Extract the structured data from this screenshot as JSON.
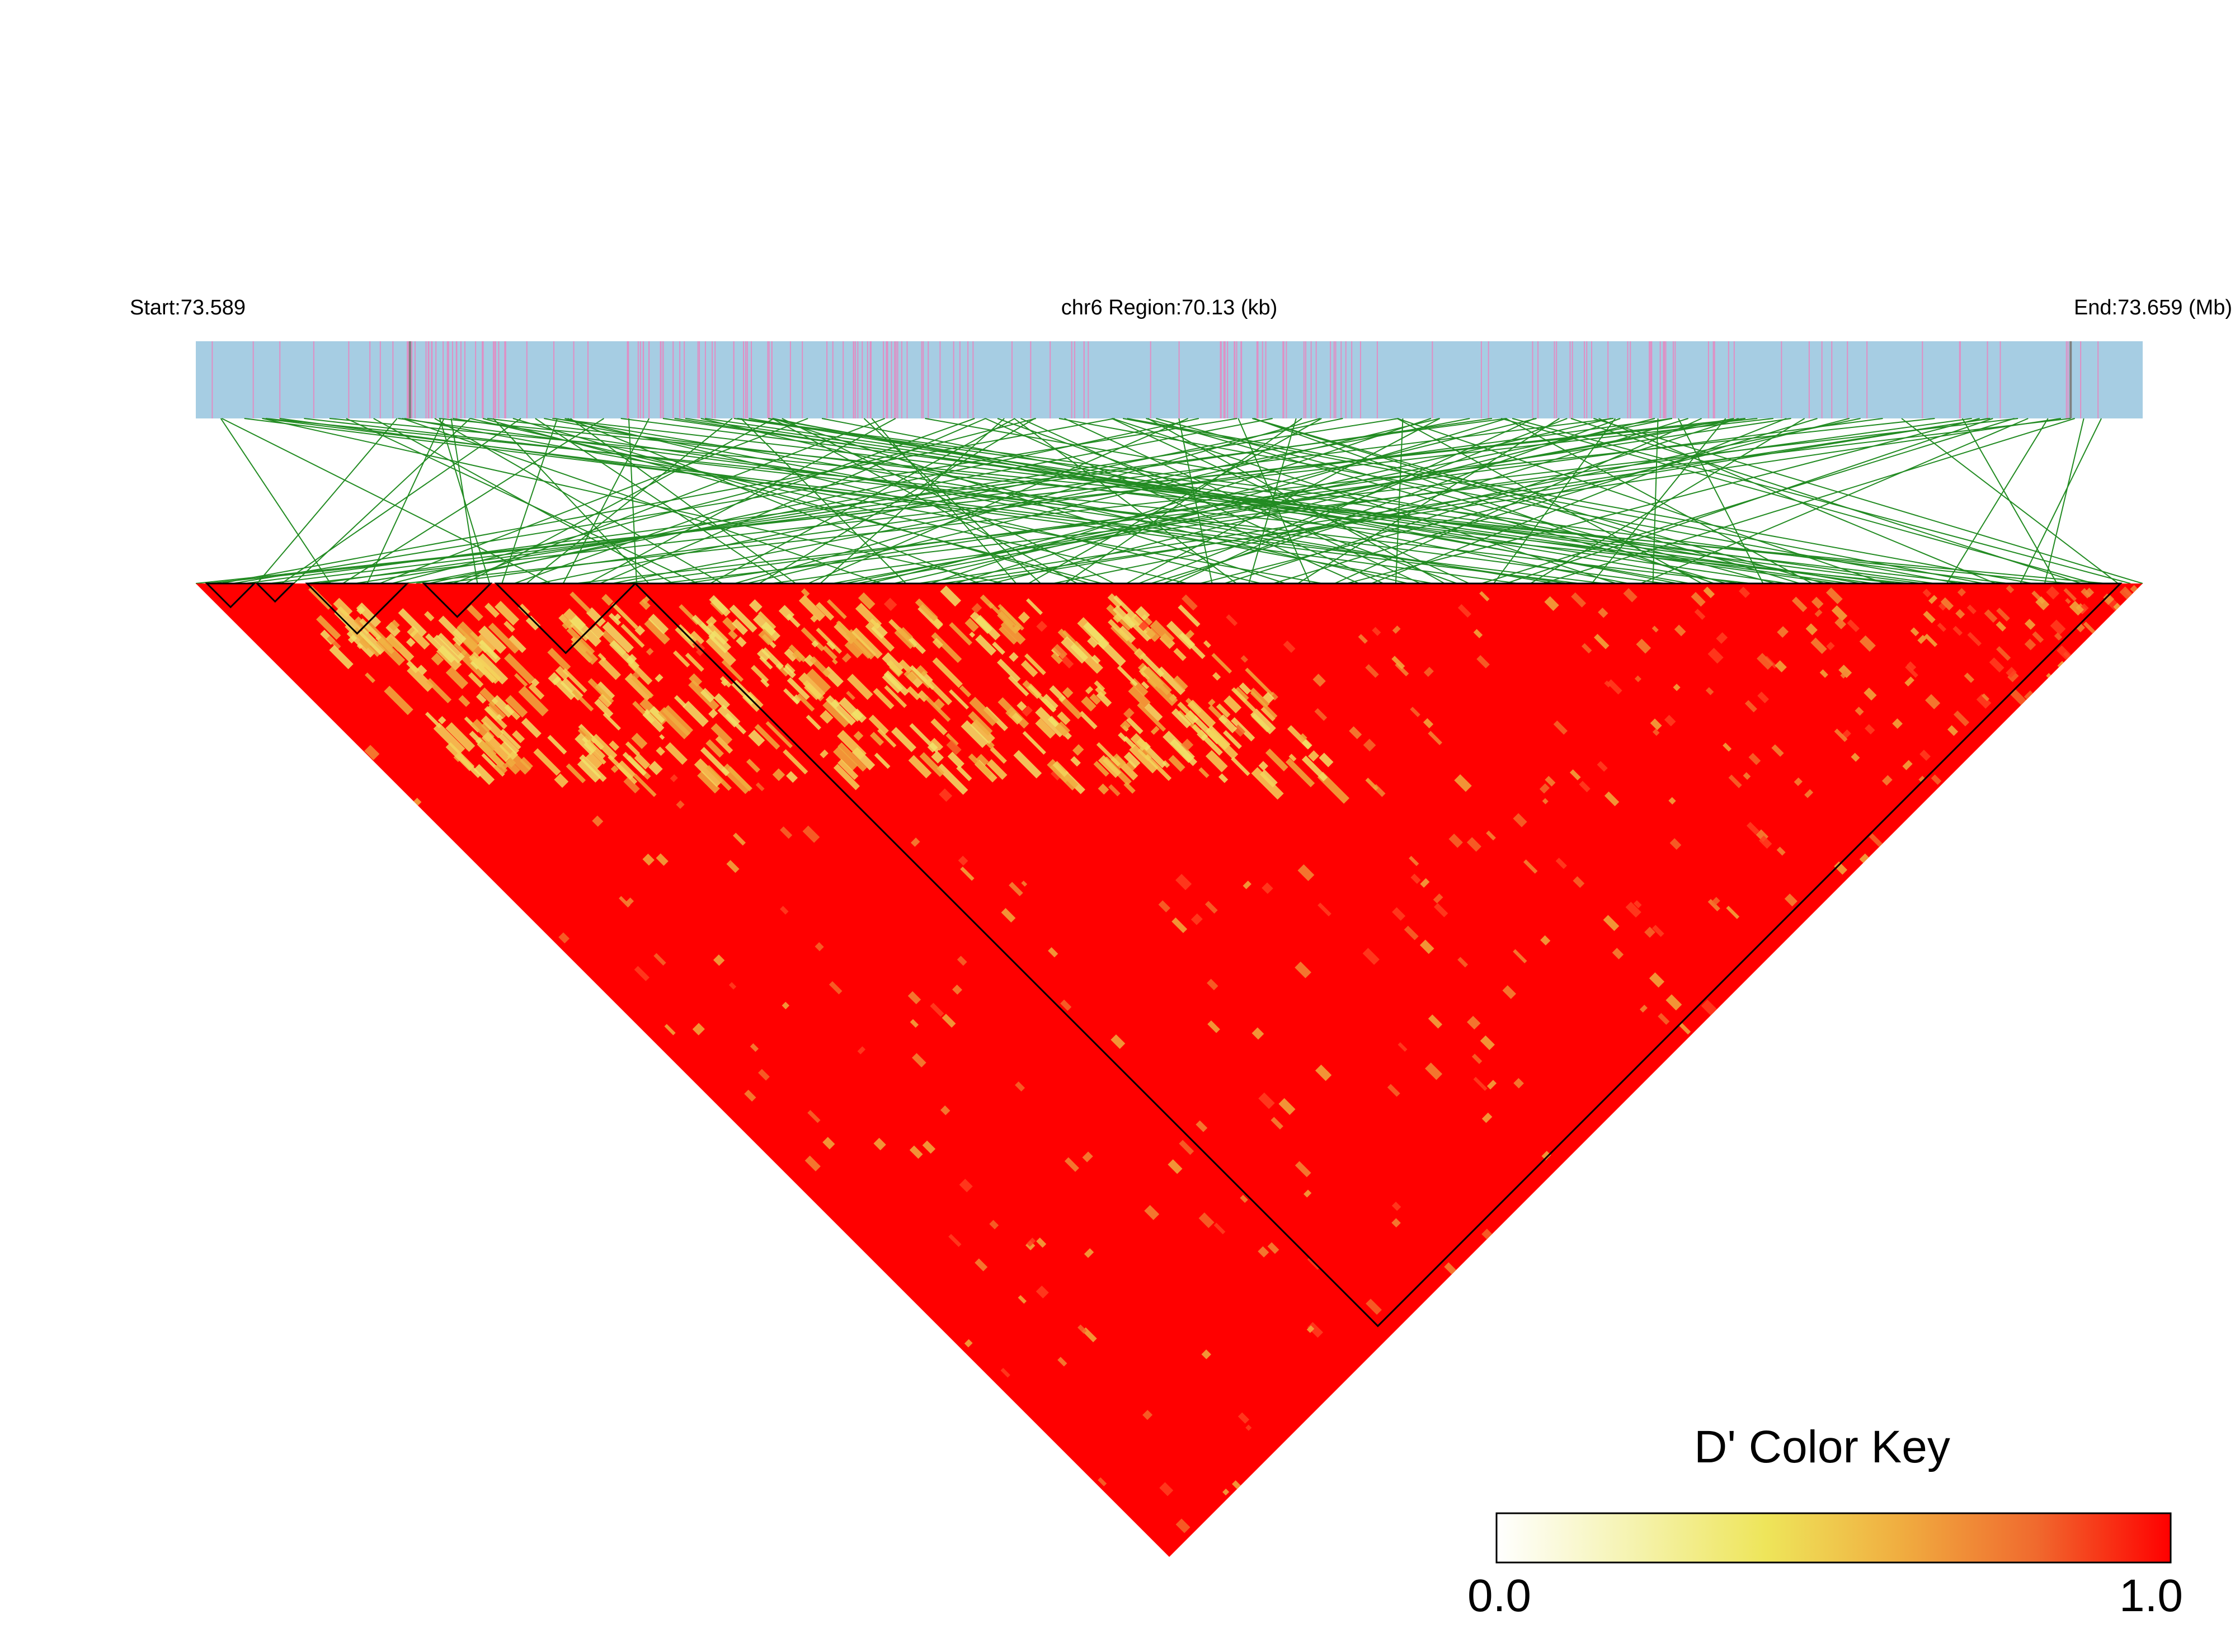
{
  "chart_data": {
    "type": "heatmap",
    "subtype": "ld-triangle",
    "header": {
      "start_label": "Start:73.589",
      "region_label": "chr6 Region:70.13 (kb)",
      "end_label": "End:73.659 (Mb)"
    },
    "region": {
      "chromosome": "chr6",
      "start_mb": 73.589,
      "end_mb": 73.659,
      "length_kb": 70.13
    },
    "color_key": {
      "title": "D' Color Key",
      "min_label": "0.0",
      "max_label": "1.0",
      "min": 0.0,
      "max": 1.0,
      "gradient": [
        "#ffffff",
        "#f5f3b0",
        "#eee55a",
        "#f0ad40",
        "#f06a2e",
        "#ff0000"
      ]
    },
    "colors": {
      "snp_bar_background": "#a6cde3",
      "snp_tick": "#df8fc4",
      "snp_tick_alt": "#808080",
      "connector_lines": "#228b22",
      "ld_high": "#ff0000",
      "ld_low": "#f1e36a",
      "block_outline": "#000000"
    },
    "ld_summary": {
      "dominant_d_prime": 1.0,
      "low_d_prime_zone": "lower-left diagonal band",
      "low_d_prime_value_range": [
        0.45,
        0.8
      ]
    },
    "haplotype_blocks_mb": [
      [
        73.5894,
        73.5911
      ],
      [
        73.5912,
        73.5925
      ],
      [
        73.593,
        73.5966
      ],
      [
        73.5972,
        73.5996
      ],
      [
        73.5998,
        73.6048
      ],
      [
        73.6048,
        73.6582
      ]
    ]
  }
}
